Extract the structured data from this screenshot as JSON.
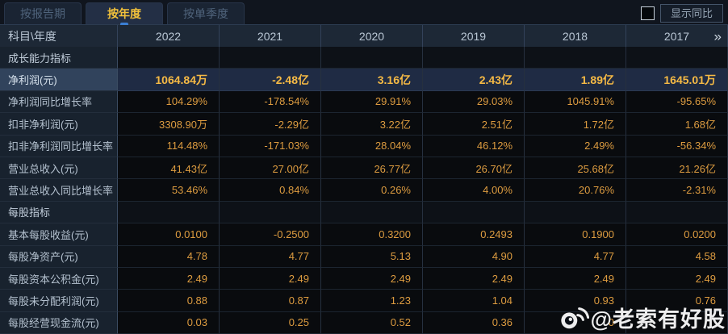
{
  "tabs": [
    {
      "label": "按报告期",
      "active": false
    },
    {
      "label": "按年度",
      "active": true
    },
    {
      "label": "按单季度",
      "active": false
    }
  ],
  "controls": {
    "show_yoy_label": "显示同比",
    "checkbox_checked": false
  },
  "table": {
    "corner_header": "科目\\年度",
    "years": [
      "2022",
      "2021",
      "2020",
      "2019",
      "2018",
      "2017"
    ],
    "more_icon": "»",
    "rows": [
      {
        "type": "section",
        "label": "成长能力指标",
        "values": [
          "",
          "",
          "",
          "",
          "",
          ""
        ]
      },
      {
        "type": "highlight",
        "label": "净利润(元)",
        "values": [
          "1064.84万",
          "-2.48亿",
          "3.16亿",
          "2.43亿",
          "1.89亿",
          "1645.01万"
        ]
      },
      {
        "type": "data",
        "label": "净利润同比增长率",
        "values": [
          "104.29%",
          "-178.54%",
          "29.91%",
          "29.03%",
          "1045.91%",
          "-95.65%"
        ]
      },
      {
        "type": "data",
        "label": "扣非净利润(元)",
        "values": [
          "3308.90万",
          "-2.29亿",
          "3.22亿",
          "2.51亿",
          "1.72亿",
          "1.68亿"
        ]
      },
      {
        "type": "data",
        "label": "扣非净利润同比增长率",
        "values": [
          "114.48%",
          "-171.03%",
          "28.04%",
          "46.12%",
          "2.49%",
          "-56.34%"
        ]
      },
      {
        "type": "data",
        "label": "营业总收入(元)",
        "values": [
          "41.43亿",
          "27.00亿",
          "26.77亿",
          "26.70亿",
          "25.68亿",
          "21.26亿"
        ]
      },
      {
        "type": "data",
        "label": "营业总收入同比增长率",
        "values": [
          "53.46%",
          "0.84%",
          "0.26%",
          "4.00%",
          "20.76%",
          "-2.31%"
        ]
      },
      {
        "type": "section",
        "label": "每股指标",
        "values": [
          "",
          "",
          "",
          "",
          "",
          ""
        ]
      },
      {
        "type": "data",
        "label": "基本每股收益(元)",
        "values": [
          "0.0100",
          "-0.2500",
          "0.3200",
          "0.2493",
          "0.1900",
          "0.0200"
        ]
      },
      {
        "type": "data",
        "label": "每股净资产(元)",
        "values": [
          "4.78",
          "4.77",
          "5.13",
          "4.90",
          "4.77",
          "4.58"
        ]
      },
      {
        "type": "data",
        "label": "每股资本公积金(元)",
        "values": [
          "2.49",
          "2.49",
          "2.49",
          "2.49",
          "2.49",
          "2.49"
        ]
      },
      {
        "type": "data",
        "label": "每股未分配利润(元)",
        "values": [
          "0.88",
          "0.87",
          "1.23",
          "1.04",
          "0.93",
          "0.76"
        ]
      },
      {
        "type": "data",
        "label": "每股经营现金流(元)",
        "values": [
          "0.03",
          "0.25",
          "0.52",
          "0.36",
          "0",
          ""
        ]
      }
    ]
  },
  "watermark": {
    "text": "@老索有好股",
    "icon": "weibo-logo"
  },
  "colors": {
    "background": "#0b0f16",
    "value_orange": "#dd9c40",
    "highlight_gold": "#f6ba45",
    "tab_active_text": "#f2c23b",
    "highlight_row_bg": "#1f2b44",
    "label_col_bg": "#18222e",
    "header_bg": "#1d2836"
  }
}
